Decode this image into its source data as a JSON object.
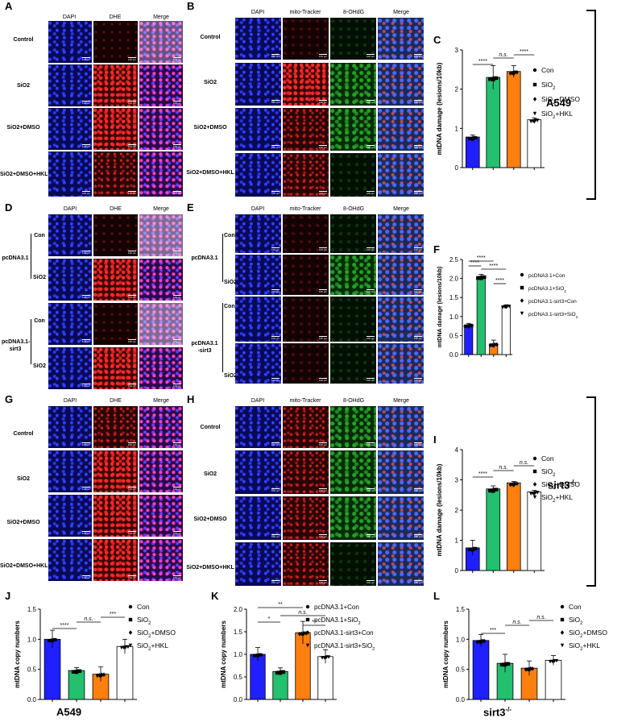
{
  "panels": {
    "A": "A",
    "B": "B",
    "C": "C",
    "D": "D",
    "E": "E",
    "F": "F",
    "G": "G",
    "H": "H",
    "I": "I",
    "J": "J",
    "K": "K",
    "L": "L"
  },
  "headers": {
    "dapi": "DAPI",
    "dhe": "DHE",
    "merge": "Merge",
    "mito": "mito-Tracker",
    "ohdg": "8-OHdG"
  },
  "rows": {
    "control": "Control",
    "sio2": "SiO2",
    "sio2dmso": "SiO2+DMSO",
    "sio2dmsohkl": "SiO2+DMSO+HKL",
    "con": "Con",
    "pcdna31": "pcDNA3.1",
    "pcdna31sirt3": "pcDNA3.1-\nsirt3",
    "pcdna31sirt3b": "pcDNA3.1\n-sirt3"
  },
  "scale_bar": "100 μm",
  "side_labels": {
    "a549": "A549",
    "sirt3": "sirt3",
    "sirt3_sup": "-/-"
  },
  "bottom_labels": {
    "j": "A549",
    "l": "sirt3",
    "l_sup": "-/-"
  },
  "charts": {
    "C": {
      "type": "bar",
      "ylabel": "mtDNA damage (lesions/10kb)",
      "ylim": [
        0,
        3
      ],
      "ticks": [
        "0",
        "1",
        "2",
        "3"
      ],
      "categories": [
        "Con",
        "SiO2",
        "SiO2+DMSO",
        "SiO2+HKL"
      ],
      "values": [
        0.78,
        2.3,
        2.45,
        1.22
      ],
      "errors": [
        0.05,
        0.3,
        0.15,
        0.05
      ],
      "colors": [
        "#1f1fff",
        "#22c06f",
        "#ff7f0e",
        "#ffffff"
      ],
      "legend": [
        "Con",
        "SiO",
        "SiO+DMSO",
        "SiO+HKL"
      ],
      "legend_sub": [
        "",
        "2",
        "2",
        "2"
      ],
      "sig": [
        [
          "****",
          0,
          1
        ],
        [
          "n.s.",
          1,
          2
        ],
        [
          "****",
          2,
          3
        ]
      ]
    },
    "F": {
      "type": "bar",
      "ylabel": "mtDNA damage (lesions/10kb)",
      "ylim": [
        0,
        2.5
      ],
      "ticks": [
        "0.0",
        "0.5",
        "1.0",
        "1.5",
        "2.0",
        "2.5"
      ],
      "categories": [
        "pcDNA3.1+Con",
        "pcDNA3.1+SiO2",
        "pcDNA3.1-sirt3+Con",
        "pcDNA3.1-sirt3+SiO2"
      ],
      "values": [
        0.78,
        2.05,
        0.28,
        1.28
      ],
      "errors": [
        0.04,
        0.06,
        0.1,
        0.03
      ],
      "colors": [
        "#1f1fff",
        "#22c06f",
        "#ff7f0e",
        "#ffffff"
      ],
      "legend": [
        "pcDNA3.1+Con",
        "pcDNA3.1+SiO",
        "pcDNA3.1-sirt3+Con",
        "pcDNA3.1-sirt3+SiO"
      ],
      "legend_sub": [
        "",
        "2",
        "",
        "2"
      ],
      "sig": [
        [
          "****",
          0,
          1
        ],
        [
          "****",
          0,
          2
        ],
        [
          "****",
          1,
          3
        ],
        [
          "****",
          2,
          3
        ]
      ]
    },
    "I": {
      "type": "bar",
      "ylabel": "mtDNA damage (lesions/10kb)",
      "ylim": [
        0,
        4
      ],
      "ticks": [
        "0",
        "1",
        "2",
        "3",
        "4"
      ],
      "categories": [
        "Con",
        "SiO2",
        "SiO2+DMSO",
        "SiO2+HKL"
      ],
      "values": [
        0.75,
        2.7,
        2.9,
        2.6
      ],
      "errors": [
        0.25,
        0.1,
        0.05,
        0.05
      ],
      "colors": [
        "#1f1fff",
        "#22c06f",
        "#ff7f0e",
        "#ffffff"
      ],
      "legend": [
        "Con",
        "SiO",
        "SiO+DMSO",
        "SiO+HKL"
      ],
      "legend_sub": [
        "",
        "2",
        "2",
        "2"
      ],
      "sig": [
        [
          "****",
          0,
          1
        ],
        [
          "n.s.",
          1,
          2
        ],
        [
          "n.s.",
          2,
          3
        ]
      ]
    },
    "J": {
      "type": "bar",
      "ylabel": "mtDNA copy numbers",
      "ylim": [
        0,
        1.5
      ],
      "ticks": [
        "0.0",
        "0.5",
        "1.0",
        "1.5"
      ],
      "categories": [
        "Con",
        "SiO2",
        "SiO2+DMSO",
        "SiO2+HKL"
      ],
      "values": [
        1.0,
        0.48,
        0.42,
        0.88
      ],
      "errors": [
        0.15,
        0.05,
        0.12,
        0.12
      ],
      "colors": [
        "#1f1fff",
        "#22c06f",
        "#ff7f0e",
        "#ffffff"
      ],
      "legend": [
        "Con",
        "SiO",
        "SiO+DMSO",
        "SiO+HKL"
      ],
      "legend_sub": [
        "",
        "2",
        "2",
        "2"
      ],
      "sig": [
        [
          "****",
          0,
          1
        ],
        [
          "n.s.",
          1,
          2
        ],
        [
          "***",
          2,
          3
        ]
      ]
    },
    "K": {
      "type": "bar",
      "ylabel": "mtDNA copy numbers",
      "ylim": [
        0,
        2.0
      ],
      "ticks": [
        "0.0",
        "0.5",
        "1.0",
        "1.5",
        "2.0"
      ],
      "categories": [
        "pcDNA3.1+Con",
        "pcDNA3.1+SiO2",
        "pcDNA3.1-sirt3+Con",
        "pcDNA3.1-sirt3+SiO2"
      ],
      "values": [
        1.0,
        0.62,
        1.48,
        0.95
      ],
      "errors": [
        0.15,
        0.08,
        0.25,
        0.15
      ],
      "colors": [
        "#1f1fff",
        "#22c06f",
        "#ff7f0e",
        "#ffffff"
      ],
      "legend": [
        "pcDNA3.1+Con",
        "pcDNA3.1+SiO",
        "pcDNA3.1-sirt3+Con",
        "pcDNA3.1-sirt3+SiO"
      ],
      "legend_sub": [
        "",
        "2",
        "",
        "2"
      ],
      "sig": [
        [
          "*",
          0,
          1
        ],
        [
          "**",
          0,
          2
        ],
        [
          "n.s.",
          1,
          3
        ],
        [
          "**",
          2,
          3
        ]
      ]
    },
    "L": {
      "type": "bar",
      "ylabel": "mtDNA copy numbers",
      "ylim": [
        0,
        1.5
      ],
      "ticks": [
        "0.0",
        "0.5",
        "1.0",
        "1.5"
      ],
      "categories": [
        "Con",
        "SiO2",
        "SiO2+DMSO",
        "SiO2+HKL"
      ],
      "values": [
        0.98,
        0.6,
        0.52,
        0.65
      ],
      "errors": [
        0.1,
        0.15,
        0.12,
        0.08
      ],
      "colors": [
        "#1f1fff",
        "#22c06f",
        "#ff7f0e",
        "#ffffff"
      ],
      "legend": [
        "Con",
        "SiO",
        "SiO+DMSO",
        "SiO+HKL"
      ],
      "legend_sub": [
        "",
        "2",
        "2",
        "2"
      ],
      "sig": [
        [
          "***",
          0,
          1
        ],
        [
          "n.s.",
          1,
          2
        ],
        [
          "n.s.",
          2,
          3
        ]
      ]
    }
  },
  "chart_data": [
    {
      "type": "bar",
      "panel": "C",
      "ylabel": "mtDNA damage (lesions/10kb)",
      "ylim": [
        0,
        3
      ],
      "categories": [
        "Con",
        "SiO2",
        "SiO2+DMSO",
        "SiO2+HKL"
      ],
      "values": [
        0.78,
        2.3,
        2.45,
        1.22
      ]
    },
    {
      "type": "bar",
      "panel": "F",
      "ylabel": "mtDNA damage (lesions/10kb)",
      "ylim": [
        0,
        2.5
      ],
      "categories": [
        "pcDNA3.1+Con",
        "pcDNA3.1+SiO2",
        "pcDNA3.1-sirt3+Con",
        "pcDNA3.1-sirt3+SiO2"
      ],
      "values": [
        0.78,
        2.05,
        0.28,
        1.28
      ]
    },
    {
      "type": "bar",
      "panel": "I",
      "ylabel": "mtDNA damage (lesions/10kb)",
      "ylim": [
        0,
        4
      ],
      "categories": [
        "Con",
        "SiO2",
        "SiO2+DMSO",
        "SiO2+HKL"
      ],
      "values": [
        0.75,
        2.7,
        2.9,
        2.6
      ]
    },
    {
      "type": "bar",
      "panel": "J",
      "ylabel": "mtDNA copy numbers",
      "ylim": [
        0,
        1.5
      ],
      "categories": [
        "Con",
        "SiO2",
        "SiO2+DMSO",
        "SiO2+HKL"
      ],
      "values": [
        1.0,
        0.48,
        0.42,
        0.88
      ]
    },
    {
      "type": "bar",
      "panel": "K",
      "ylabel": "mtDNA copy numbers",
      "ylim": [
        0,
        2.0
      ],
      "categories": [
        "pcDNA3.1+Con",
        "pcDNA3.1+SiO2",
        "pcDNA3.1-sirt3+Con",
        "pcDNA3.1-sirt3+SiO2"
      ],
      "values": [
        1.0,
        0.62,
        1.48,
        0.95
      ]
    },
    {
      "type": "bar",
      "panel": "L",
      "ylabel": "mtDNA copy numbers",
      "ylim": [
        0,
        1.5
      ],
      "categories": [
        "Con",
        "SiO2",
        "SiO2+DMSO",
        "SiO2+HKL"
      ],
      "values": [
        0.98,
        0.6,
        0.52,
        0.65
      ]
    }
  ]
}
